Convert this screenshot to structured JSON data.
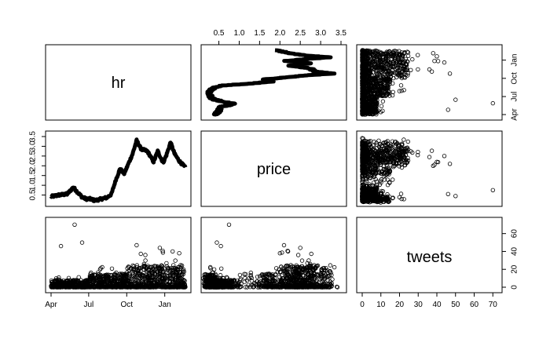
{
  "chart_data": {
    "type": "scatter",
    "variables": [
      "hr",
      "price",
      "tweets"
    ],
    "hr": {
      "kind": "date",
      "range": [
        "2017-04-01",
        "2018-02-20"
      ],
      "tick_labels": [
        "Apr",
        "Jul",
        "Oct",
        "Jan"
      ],
      "tick_values": [
        "2017-04-01",
        "2017-07-01",
        "2017-10-01",
        "2018-01-01"
      ]
    },
    "price": {
      "range": [
        0.2,
        3.5
      ],
      "tick_labels": [
        "0.5",
        "1.0",
        "1.5",
        "2.0",
        "2.5",
        "3.0",
        "3.5"
      ],
      "tick_values": [
        0.5,
        1.0,
        1.5,
        2.0,
        2.5,
        3.0,
        3.5
      ]
    },
    "tweets": {
      "range": [
        0,
        72
      ],
      "tick_labels": [
        "0",
        "10",
        "20",
        "30",
        "40",
        "50",
        "60",
        "70"
      ],
      "tick_values": [
        0,
        10,
        20,
        30,
        40,
        50,
        60,
        70
      ],
      "right_tick_labels": [
        "0",
        "20",
        "40",
        "60"
      ],
      "right_tick_values": [
        0,
        20,
        40,
        60
      ]
    },
    "price_series": {
      "dates": [
        "2017-04-01",
        "2017-04-20",
        "2017-05-10",
        "2017-05-25",
        "2017-06-05",
        "2017-06-15",
        "2017-06-25",
        "2017-07-05",
        "2017-07-16",
        "2017-08-01",
        "2017-08-15",
        "2017-08-25",
        "2017-09-05",
        "2017-09-15",
        "2017-09-25",
        "2017-10-05",
        "2017-10-15",
        "2017-10-25",
        "2017-11-05",
        "2017-11-20",
        "2017-12-05",
        "2017-12-15",
        "2017-12-28",
        "2018-01-05",
        "2018-01-15",
        "2018-01-25",
        "2018-02-05",
        "2018-02-20"
      ],
      "values": [
        0.42,
        0.5,
        0.55,
        0.9,
        0.62,
        0.4,
        0.3,
        0.3,
        0.22,
        0.3,
        0.38,
        0.55,
        1.3,
        1.85,
        1.6,
        2.1,
        2.6,
        3.3,
        2.85,
        2.75,
        2.2,
        2.75,
        2.15,
        2.55,
        3.2,
        2.6,
        2.25,
        1.9
      ],
      "line_width": 5
    },
    "tweets_pattern": {
      "baseline_max": 8,
      "bulk_by_period": [
        {
          "from": "2017-04-01",
          "to": "2017-07-01",
          "typical_max": 8
        },
        {
          "from": "2017-07-01",
          "to": "2017-10-01",
          "typical_max": 15
        },
        {
          "from": "2017-10-01",
          "to": "2018-02-20",
          "typical_max": 25
        }
      ],
      "outliers": [
        {
          "date": "2017-05-28",
          "price": 0.75,
          "tweets": 70
        },
        {
          "date": "2017-04-25",
          "price": 0.55,
          "tweets": 46
        },
        {
          "date": "2017-06-15",
          "price": 0.45,
          "tweets": 50
        },
        {
          "date": "2017-10-25",
          "price": 2.1,
          "tweets": 47
        },
        {
          "date": "2017-12-20",
          "price": 2.5,
          "tweets": 44
        },
        {
          "date": "2018-01-20",
          "price": 2.2,
          "tweets": 40
        },
        {
          "date": "2017-11-15",
          "price": 2.45,
          "tweets": 36
        },
        {
          "date": "2018-02-05",
          "price": 2.0,
          "tweets": 38
        }
      ]
    },
    "grid": false,
    "legend": "none"
  }
}
